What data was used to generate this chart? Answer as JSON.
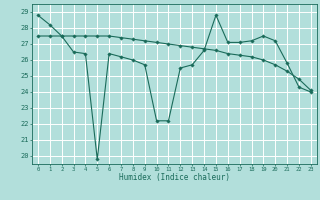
{
  "xlabel": "Humidex (Indice chaleur)",
  "bg_color": "#b2dfdb",
  "grid_color": "#ffffff",
  "line_color": "#1a6b5a",
  "ylim": [
    19.5,
    29.5
  ],
  "xlim": [
    -0.5,
    23.5
  ],
  "yticks": [
    20,
    21,
    22,
    23,
    24,
    25,
    26,
    27,
    28,
    29
  ],
  "xticks": [
    0,
    1,
    2,
    3,
    4,
    5,
    6,
    7,
    8,
    9,
    10,
    11,
    12,
    13,
    14,
    15,
    16,
    17,
    18,
    19,
    20,
    21,
    22,
    23
  ],
  "line1_x": [
    0,
    1,
    2,
    3,
    4,
    5,
    6,
    7,
    8,
    9,
    10,
    11,
    12,
    13,
    14,
    15,
    16,
    17,
    18,
    19,
    20,
    21,
    22,
    23
  ],
  "line1_y": [
    28.8,
    28.2,
    27.5,
    26.5,
    26.4,
    19.8,
    26.4,
    26.2,
    26.0,
    25.7,
    22.2,
    22.2,
    25.5,
    25.7,
    26.6,
    28.8,
    27.1,
    27.1,
    27.2,
    27.5,
    27.2,
    25.8,
    24.3,
    24.0
  ],
  "line2_x": [
    0,
    1,
    2,
    3,
    4,
    5,
    6,
    7,
    8,
    9,
    10,
    11,
    12,
    13,
    14,
    15,
    16,
    17,
    18,
    19,
    20,
    21,
    22,
    23
  ],
  "line2_y": [
    27.5,
    27.5,
    27.5,
    27.5,
    27.5,
    27.5,
    27.5,
    27.4,
    27.3,
    27.2,
    27.1,
    27.0,
    26.9,
    26.8,
    26.7,
    26.6,
    26.4,
    26.3,
    26.2,
    26.0,
    25.7,
    25.3,
    24.8,
    24.1
  ]
}
